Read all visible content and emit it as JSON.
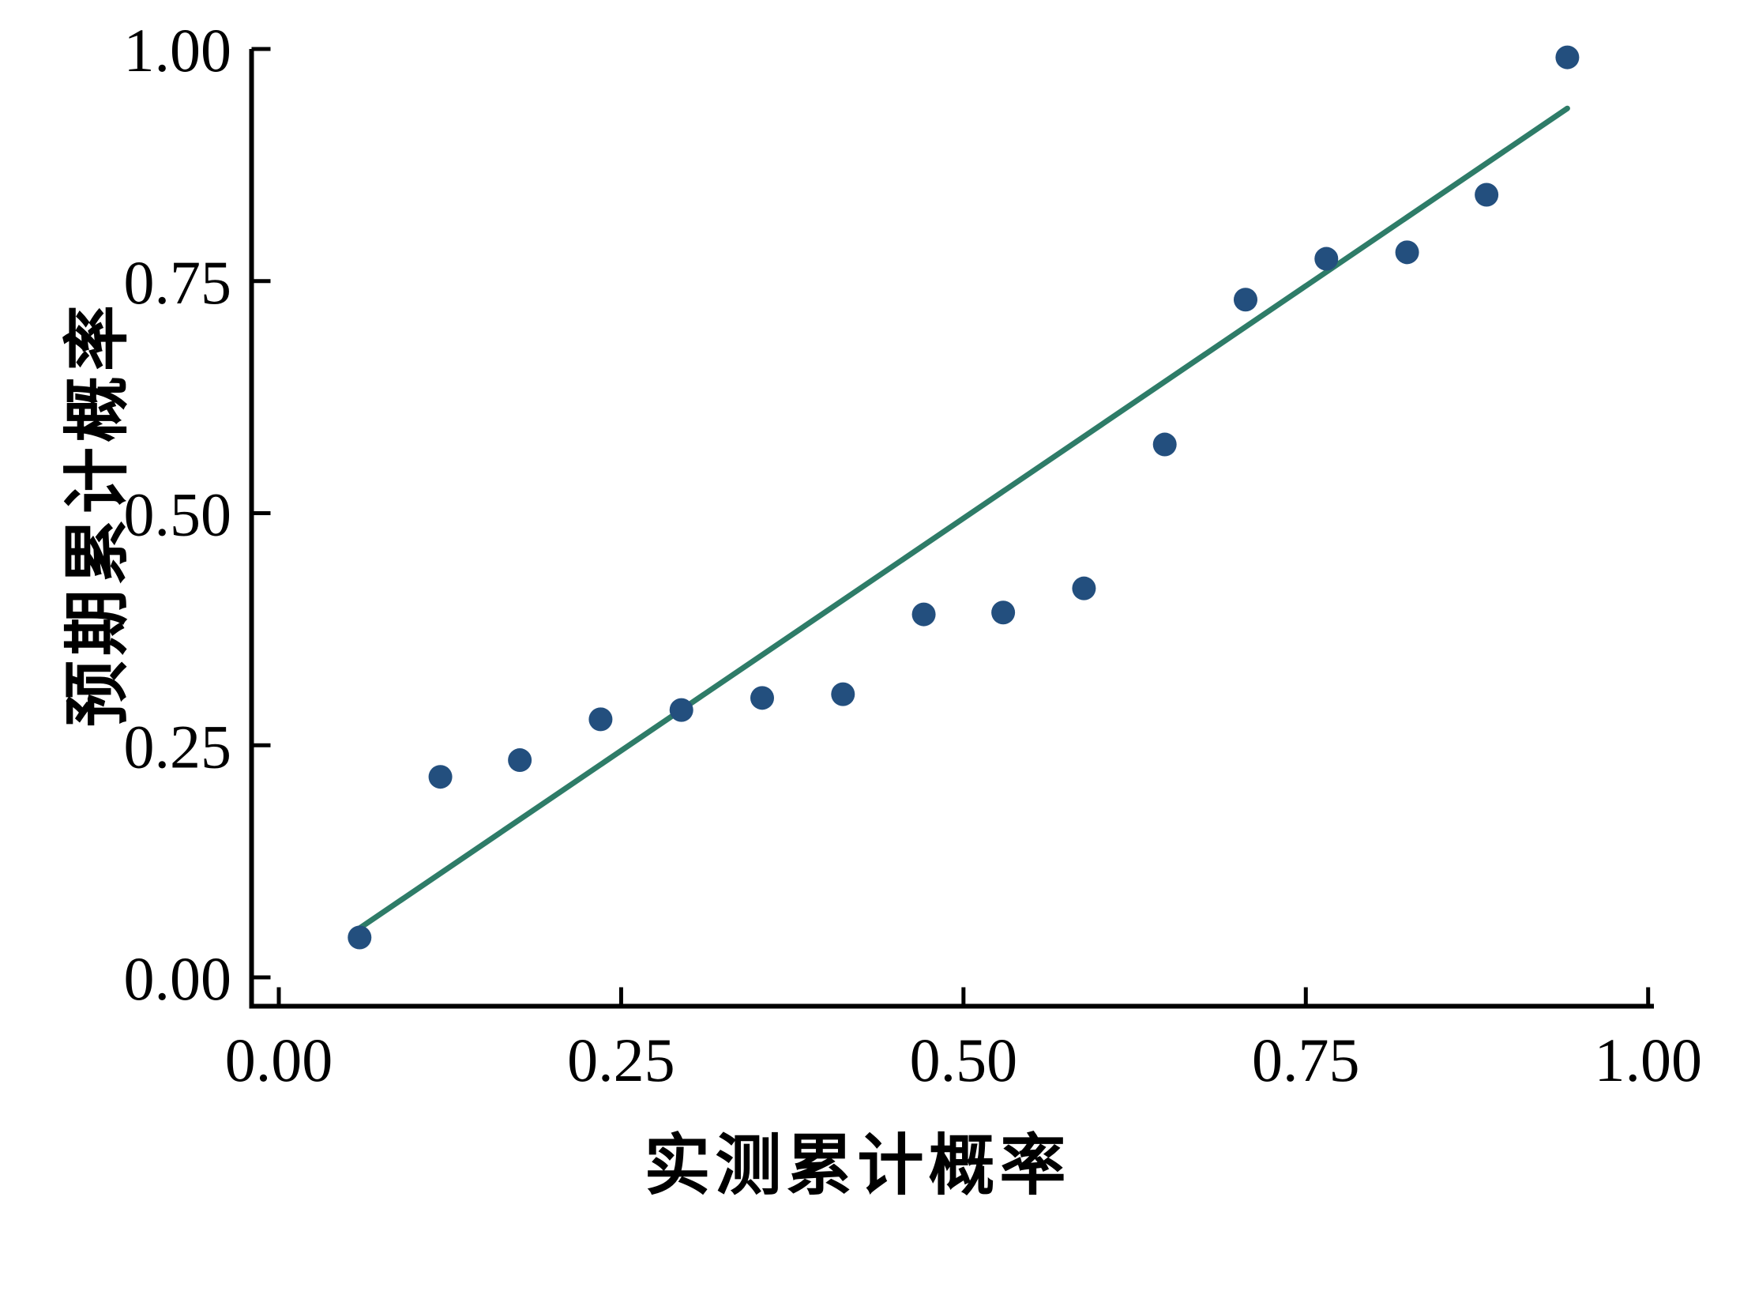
{
  "chart_data": {
    "type": "scatter",
    "title": "",
    "xlabel": "实测累计概率",
    "ylabel": "预期累计概率",
    "xlim": [
      0.0,
      1.0
    ],
    "ylim": [
      0.0,
      1.0
    ],
    "grid": "off",
    "legend": "none",
    "x_ticks": {
      "values": [
        0.0,
        0.25,
        0.5,
        0.75,
        1.0
      ],
      "labels": [
        "0.00",
        "0.25",
        "0.50",
        "0.75",
        "1.00"
      ]
    },
    "y_ticks": {
      "values": [
        0.0,
        0.25,
        0.5,
        0.75,
        1.0
      ],
      "labels": [
        "0.00",
        "0.25",
        "0.50",
        "0.75",
        "1.00"
      ]
    },
    "points": [
      [
        0.059,
        0.043
      ],
      [
        0.118,
        0.216
      ],
      [
        0.176,
        0.234
      ],
      [
        0.235,
        0.278
      ],
      [
        0.294,
        0.288
      ],
      [
        0.353,
        0.301
      ],
      [
        0.412,
        0.305
      ],
      [
        0.471,
        0.391
      ],
      [
        0.529,
        0.393
      ],
      [
        0.588,
        0.419
      ],
      [
        0.647,
        0.574
      ],
      [
        0.706,
        0.73
      ],
      [
        0.765,
        0.774
      ],
      [
        0.824,
        0.781
      ],
      [
        0.882,
        0.843
      ],
      [
        0.941,
        0.991
      ]
    ],
    "reference_line": {
      "from": [
        0.059,
        0.053
      ],
      "to": [
        0.941,
        0.936
      ]
    },
    "colors": {
      "point": "#234F7E",
      "line": "#2E7C68",
      "axis": "#000000",
      "background": "#FFFFFF"
    }
  }
}
